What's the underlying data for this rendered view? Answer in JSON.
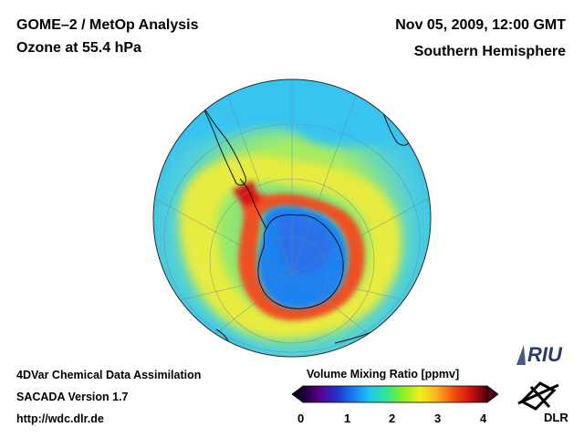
{
  "header": {
    "title": "GOME–2 / MetOp Analysis",
    "subtitle": "Ozone at 55.4 hPa",
    "datetime": "Nov 05, 2009, 12:00 GMT",
    "region": "Southern Hemisphere"
  },
  "footer": {
    "line1": "4DVar Chemical Data Assimilation",
    "line2": "SACADA Version 1.7",
    "url": "http://wdc.dlr.de"
  },
  "colorbar": {
    "title": "Volume Mixing Ratio [ppmv]",
    "ticks": [
      "0",
      "1",
      "2",
      "3",
      "4"
    ],
    "colors": [
      "#1a0030",
      "#5a008f",
      "#2030c8",
      "#1a7cf0",
      "#20c8f0",
      "#30e890",
      "#90ee20",
      "#f0f020",
      "#f8b020",
      "#f05010",
      "#d01010",
      "#500010"
    ]
  },
  "map": {
    "projection": "orthographic",
    "hemisphere": "south",
    "ozone_hole_color": "#1e82f0",
    "collar_color": "#f04820",
    "midlat_color": "#f0e030",
    "background_color": "#40c8f0"
  },
  "logos": {
    "riu": "RIU",
    "dlr": "DLR"
  }
}
